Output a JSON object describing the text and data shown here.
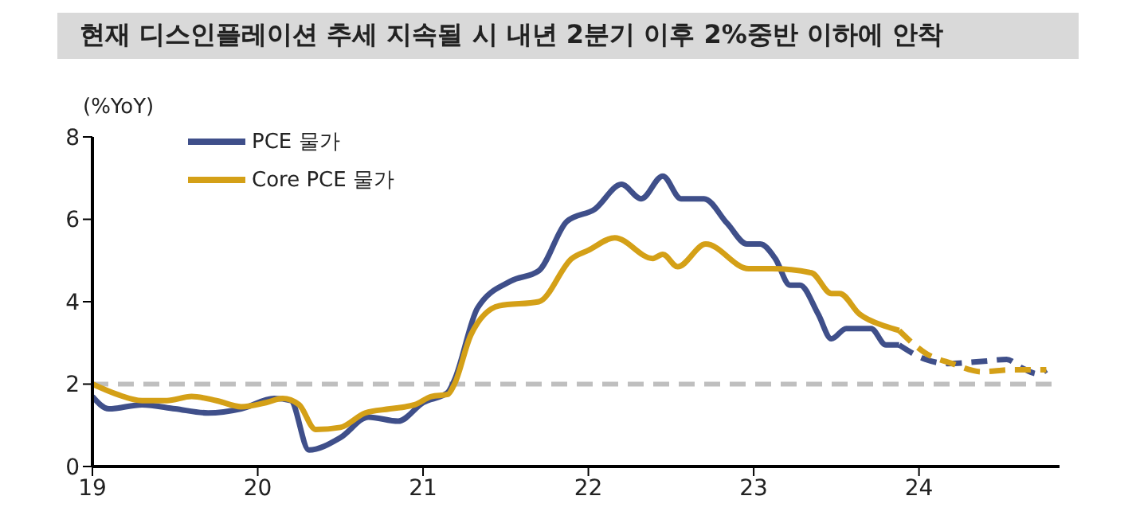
{
  "chart_data": {
    "type": "line",
    "title": "현재 디스인플레이션 추세 지속될 시 내년 2분기 이후 2%중반 이하에 안착",
    "ylabel": "(%YoY)",
    "xlim": [
      19,
      24.85
    ],
    "xticks": [
      19,
      20,
      21,
      22,
      23,
      24
    ],
    "ylim": [
      0,
      8
    ],
    "yticks": [
      0,
      2,
      4,
      6,
      8
    ],
    "legend": "top left",
    "grid": false,
    "ref_lines": [
      {
        "axis": "y",
        "value": 2,
        "color": "#bfbfbf",
        "line_style": "dashed"
      }
    ],
    "series": [
      {
        "name": "PCE 물가",
        "color": "#3f4f8a",
        "line_style": "solid",
        "x": [
          19.0,
          19.1,
          19.3,
          19.5,
          19.7,
          19.9,
          20.1,
          20.2,
          20.31,
          20.5,
          20.67,
          20.85,
          21.0,
          21.15,
          21.19,
          21.33,
          21.53,
          21.7,
          21.87,
          22.04,
          22.2,
          22.32,
          22.45,
          22.56,
          22.7,
          22.84,
          22.96,
          23.04,
          23.13,
          23.22,
          23.28,
          23.39,
          23.47,
          23.56,
          23.71,
          23.8,
          23.88
        ],
        "values": [
          1.7,
          1.4,
          1.5,
          1.4,
          1.3,
          1.4,
          1.65,
          1.6,
          0.4,
          0.7,
          1.2,
          1.1,
          1.55,
          1.8,
          2.1,
          3.85,
          4.5,
          4.75,
          5.95,
          6.25,
          6.85,
          6.5,
          7.05,
          6.5,
          6.5,
          5.9,
          5.4,
          5.4,
          5.05,
          4.4,
          4.4,
          3.7,
          3.1,
          3.35,
          3.35,
          2.95,
          2.95
        ]
      },
      {
        "name": "Core PCE 물가",
        "color": "#d4a017",
        "line_style": "solid",
        "x": [
          19.0,
          19.15,
          19.3,
          19.45,
          19.6,
          19.75,
          19.9,
          20.05,
          20.15,
          20.25,
          20.35,
          20.5,
          20.65,
          20.8,
          20.95,
          21.05,
          21.15,
          21.19,
          21.29,
          21.46,
          21.7,
          21.9,
          22.0,
          22.16,
          22.39,
          22.45,
          22.54,
          22.71,
          22.97,
          23.11,
          23.35,
          23.47,
          23.52,
          23.64,
          23.8,
          23.88
        ],
        "values": [
          2.0,
          1.75,
          1.6,
          1.6,
          1.7,
          1.6,
          1.45,
          1.55,
          1.65,
          1.5,
          0.9,
          0.95,
          1.3,
          1.4,
          1.5,
          1.7,
          1.75,
          2.0,
          3.2,
          3.9,
          4.0,
          5.05,
          5.25,
          5.55,
          5.05,
          5.15,
          4.85,
          5.4,
          4.8,
          4.8,
          4.7,
          4.2,
          4.2,
          3.7,
          3.4,
          3.3
        ]
      },
      {
        "color": "#3f4f8a",
        "line_style": "dashed",
        "x": [
          23.88,
          24.04,
          24.17,
          24.38,
          24.53,
          24.62,
          24.72,
          24.77
        ],
        "values": [
          2.95,
          2.6,
          2.5,
          2.55,
          2.6,
          2.4,
          2.25,
          2.35
        ]
      },
      {
        "color": "#d4a017",
        "line_style": "dashed",
        "x": [
          23.88,
          24.04,
          24.2,
          24.38,
          24.56,
          24.77
        ],
        "values": [
          3.3,
          2.75,
          2.5,
          2.3,
          2.35,
          2.35
        ]
      }
    ]
  }
}
